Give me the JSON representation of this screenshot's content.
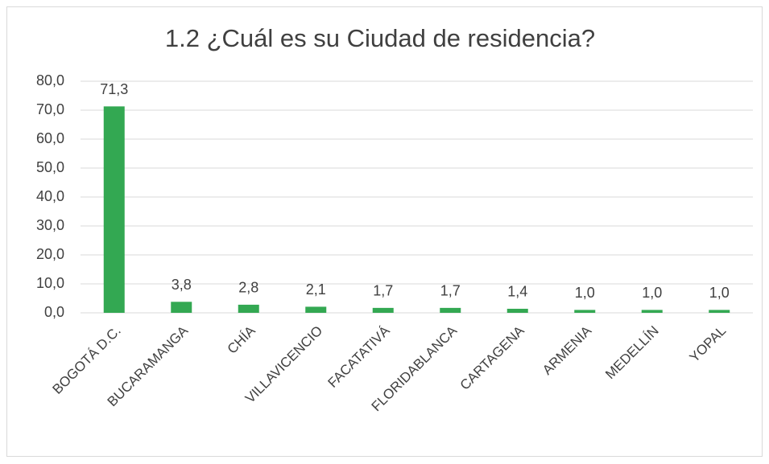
{
  "chart_data": {
    "type": "bar",
    "title": "1.2 ¿Cuál es su Ciudad de residencia?",
    "categories": [
      "BOGOTÁ D.C.",
      "BUCARAMANGA",
      "CHÍA",
      "VILLAVICENCIO",
      "FACATATIVÁ",
      "FLORIDABLANCA",
      "CARTAGENA",
      "ARMENIA",
      "MEDELLÍN",
      "YOPAL"
    ],
    "values": [
      71.3,
      3.8,
      2.8,
      2.1,
      1.7,
      1.7,
      1.4,
      1.0,
      1.0,
      1.0
    ],
    "value_labels": [
      "71,3",
      "3,8",
      "2,8",
      "2,1",
      "1,7",
      "1,7",
      "1,4",
      "1,0",
      "1,0",
      "1,0"
    ],
    "color": "#33a852",
    "ylim": [
      0,
      80
    ],
    "yticks": [
      {
        "value": 0,
        "label": "0,0"
      },
      {
        "value": 10,
        "label": "10,0"
      },
      {
        "value": 20,
        "label": "20,0"
      },
      {
        "value": 30,
        "label": "30,0"
      },
      {
        "value": 40,
        "label": "40,0"
      },
      {
        "value": 50,
        "label": "50,0"
      },
      {
        "value": 60,
        "label": "60,0"
      },
      {
        "value": 70,
        "label": "70,0"
      },
      {
        "value": 80,
        "label": "80,0"
      }
    ],
    "grid": true
  }
}
